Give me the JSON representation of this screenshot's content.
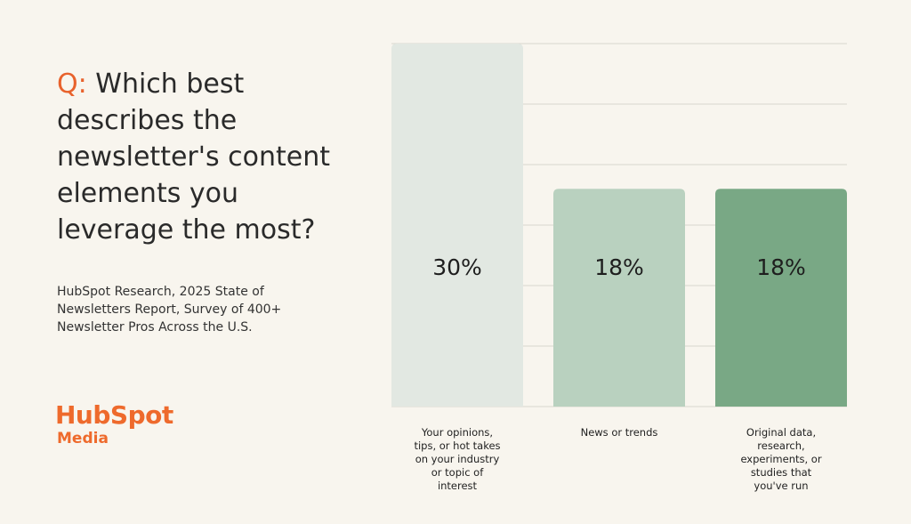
{
  "question": {
    "prefix": "Q:",
    "text": "Which best describes the newsletter's content elements you leverage the most?"
  },
  "source": "HubSpot Research, 2025 State of Newsletters Report, Survey of 400+ Newsletter Pros Across the U.S.",
  "logo": {
    "line1": "HubSpot",
    "line2": "Media"
  },
  "colors": {
    "accent": "#e8622c",
    "bars": [
      "#e2e8e2",
      "#b9d1bf",
      "#79a885"
    ],
    "gridline": "#d9d6cf"
  },
  "chart_data": {
    "type": "bar",
    "categories": [
      "Your opinions, tips, or hot takes on your industry or topic of interest",
      "News or trends",
      "Original data, research, experiments, or studies that you've run"
    ],
    "category_lines": [
      [
        "Your opinions,",
        "tips, or hot takes",
        "on your industry",
        "or topic of",
        "interest"
      ],
      [
        "News or trends"
      ],
      [
        "Original data,",
        "research,",
        "experiments, or",
        "studies that",
        "you've run"
      ]
    ],
    "values": [
      30,
      18,
      18
    ],
    "value_labels": [
      "30%",
      "18%",
      "18%"
    ],
    "ylim": [
      0,
      30
    ],
    "grid": true,
    "title": "",
    "xlabel": "",
    "ylabel": ""
  }
}
